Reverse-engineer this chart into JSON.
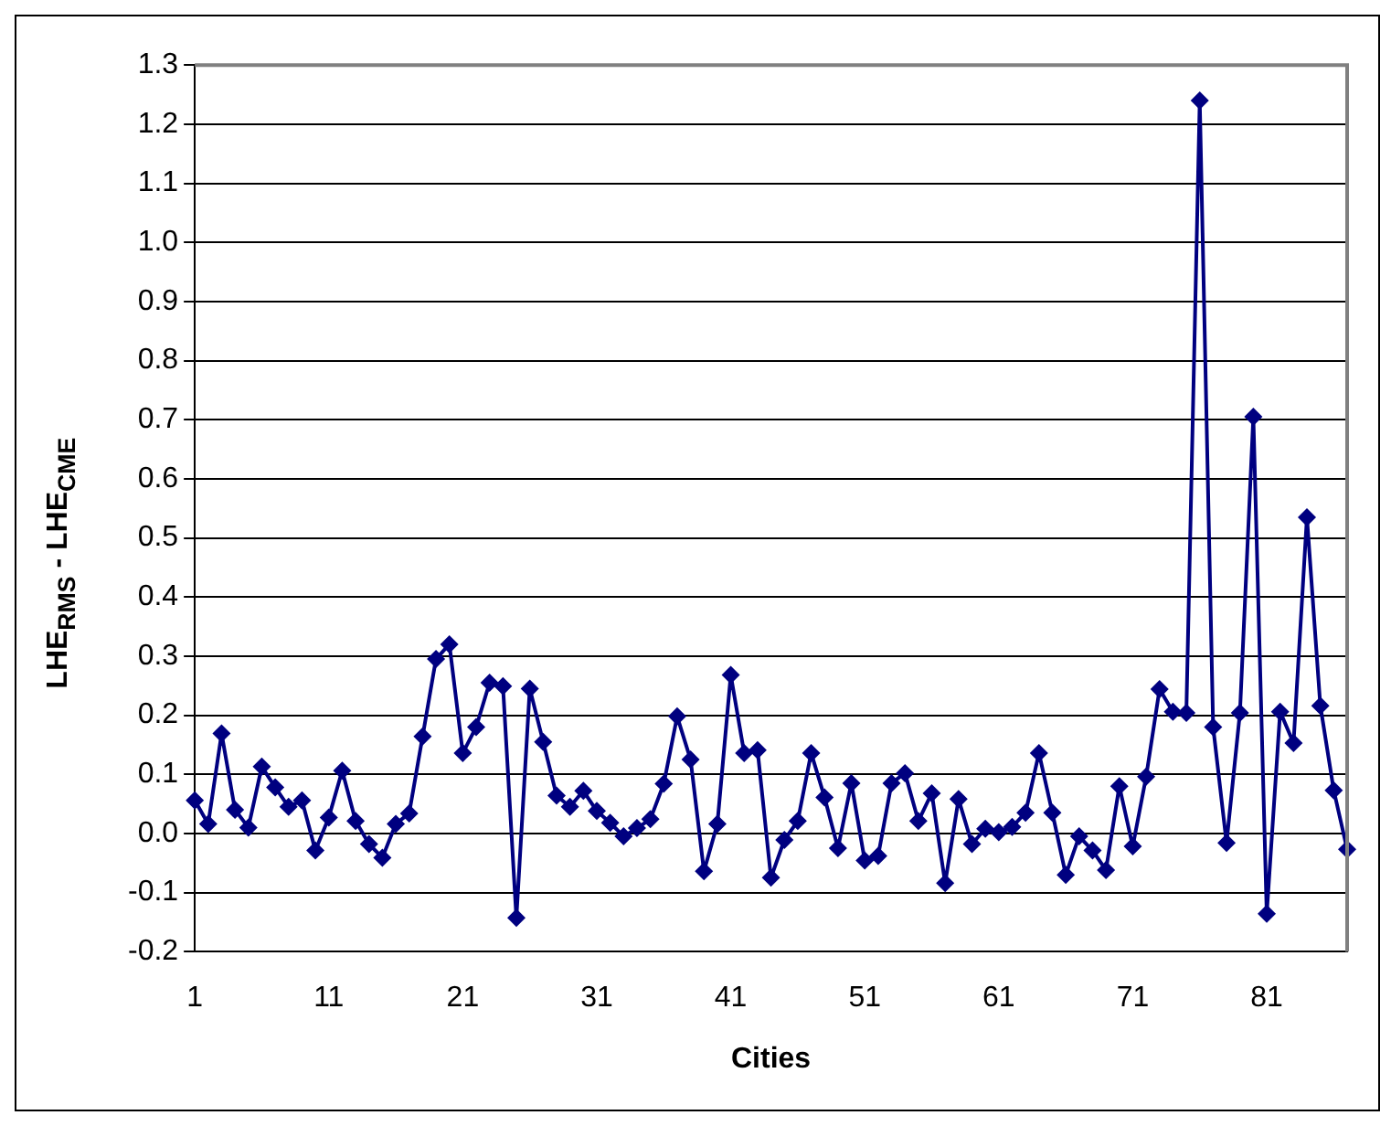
{
  "chart_data": {
    "type": "line",
    "xlabel": "Cities",
    "ylabel": "LHE$_{RMS}$ - LHE$_{CME}$",
    "categories": [
      "1",
      null,
      null,
      null,
      null,
      null,
      null,
      null,
      null,
      null,
      "11",
      null,
      null,
      null,
      null,
      null,
      null,
      null,
      null,
      null,
      "21",
      null,
      null,
      null,
      null,
      null,
      null,
      null,
      null,
      null,
      "31",
      null,
      null,
      null,
      null,
      null,
      null,
      null,
      null,
      null,
      "41",
      null,
      null,
      null,
      null,
      null,
      null,
      null,
      null,
      null,
      "51",
      null,
      null,
      null,
      null,
      null,
      null,
      null,
      null,
      null,
      "61",
      null,
      null,
      null,
      null,
      null,
      null,
      null,
      null,
      null,
      "71",
      null,
      null,
      null,
      null,
      null,
      null,
      null,
      null,
      null,
      "81",
      null,
      null,
      null,
      null,
      null,
      null
    ],
    "series": [
      {
        "color": "#000080",
        "values": [
          0.056,
          0.016,
          0.169,
          0.04,
          0.01,
          0.113,
          0.078,
          0.045,
          0.056,
          -0.029,
          0.027,
          0.106,
          0.021,
          -0.018,
          -0.041,
          0.016,
          0.034,
          0.164,
          0.295,
          0.32,
          0.136,
          0.18,
          0.255,
          0.249,
          -0.143,
          0.245,
          0.155,
          0.064,
          0.045,
          0.072,
          0.038,
          0.018,
          -0.005,
          0.009,
          0.024,
          0.084,
          0.198,
          0.125,
          -0.064,
          0.016,
          0.268,
          0.136,
          0.141,
          -0.075,
          -0.011,
          0.021,
          0.136,
          0.061,
          -0.025,
          0.085,
          -0.046,
          -0.038,
          0.085,
          0.102,
          0.021,
          0.068,
          -0.084,
          0.058,
          -0.018,
          0.008,
          0.002,
          0.011,
          0.035,
          0.136,
          0.035,
          -0.07,
          -0.005,
          -0.029,
          -0.062,
          0.08,
          -0.022,
          0.096,
          0.244,
          0.206,
          0.204,
          1.24,
          0.18,
          -0.016,
          0.204,
          0.705,
          -0.136,
          0.206,
          0.153,
          0.535,
          0.216,
          0.073,
          -0.027
        ]
      }
    ],
    "ylim": [
      -0.2,
      1.3
    ],
    "yticks": [
      {
        "value": -0.2,
        "label": "-0.2"
      },
      {
        "value": -0.1,
        "label": "-0.1"
      },
      {
        "value": 0,
        "label": "0.0"
      },
      {
        "value": 0.1,
        "label": "0.1"
      },
      {
        "value": 0.2,
        "label": "0.2"
      },
      {
        "value": 0.3,
        "label": "0.3"
      },
      {
        "value": 0.4,
        "label": "0.4"
      },
      {
        "value": 0.5,
        "label": "0.5"
      },
      {
        "value": 0.6,
        "label": "0.6"
      },
      {
        "value": 0.7,
        "label": "0.7"
      },
      {
        "value": 0.8,
        "label": "0.8"
      },
      {
        "value": 0.9,
        "label": "0.9"
      },
      {
        "value": 1,
        "label": "1.0"
      },
      {
        "value": 1.1,
        "label": "1.1"
      },
      {
        "value": 1.2,
        "label": "1.2"
      },
      {
        "value": 1.3,
        "label": "1.3"
      }
    ],
    "grid": "y",
    "marker": "diamond",
    "line_style": "solid",
    "legend": false
  }
}
